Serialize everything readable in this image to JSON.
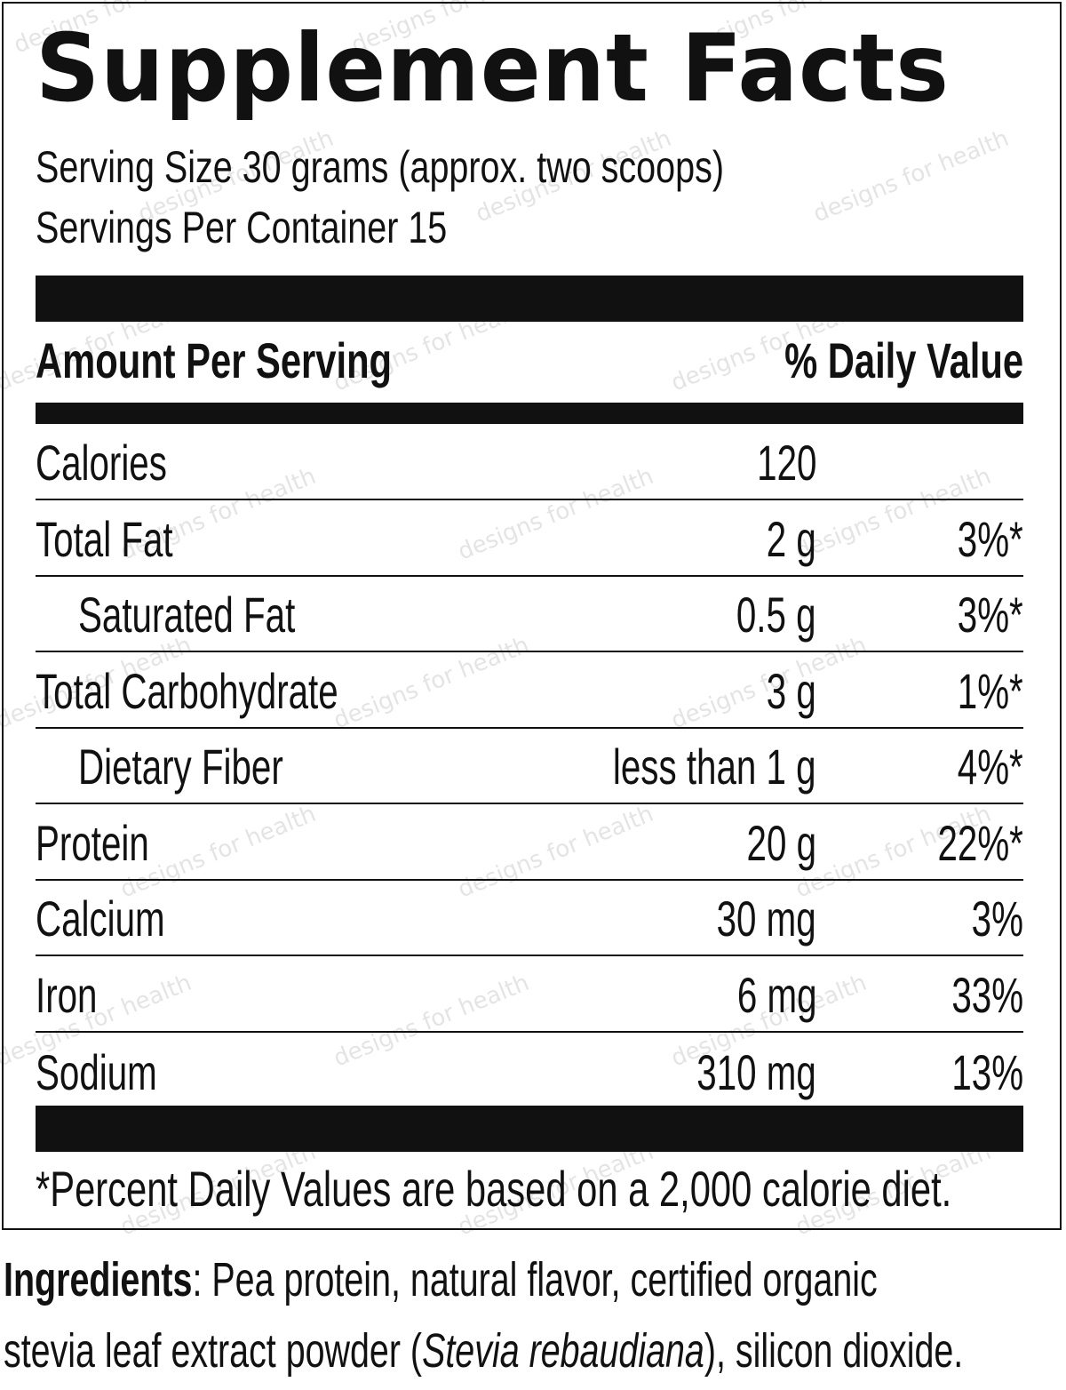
{
  "label": {
    "title": "Supplement Facts",
    "serving_size": "Serving Size 30 grams (approx. two scoops)",
    "servings_per_container": "Servings Per Container 15",
    "amount_per_serving": "Amount Per Serving",
    "daily_value_header": "% Daily Value",
    "nutrients": [
      {
        "name": "Calories",
        "amount": "120",
        "dv": ""
      },
      {
        "name": "Total Fat",
        "amount": "2 g",
        "dv": "3%*"
      },
      {
        "name": "Saturated Fat",
        "amount": "0.5 g",
        "dv": "3%*"
      },
      {
        "name": "Total Carbohydrate",
        "amount": "3 g",
        "dv": "1%*"
      },
      {
        "name": "Dietary Fiber",
        "amount": "less than 1 g",
        "dv": "4%*"
      },
      {
        "name": "Protein",
        "amount": "20 g",
        "dv": "22%*"
      },
      {
        "name": "Calcium",
        "amount": "30 mg",
        "dv": "3%"
      },
      {
        "name": "Iron",
        "amount": "6 mg",
        "dv": "33%"
      },
      {
        "name": "Sodium",
        "amount": "310 mg",
        "dv": "13%"
      }
    ],
    "footnote": "*Percent Daily Values are based on a 2,000 calorie diet."
  },
  "ingredients": {
    "label": "Ingredients",
    "line1_rest": ": Pea protein, natural flavor, certified organic",
    "line2_start": "stevia leaf extract powder (",
    "line2_italic": "Stevia rebaudiana",
    "line2_end": "), silicon dioxide."
  },
  "watermark": {
    "text": "designs for health"
  },
  "colors": {
    "ink": "#111111",
    "watermark": "#cfcfcf",
    "background": "#ffffff"
  }
}
